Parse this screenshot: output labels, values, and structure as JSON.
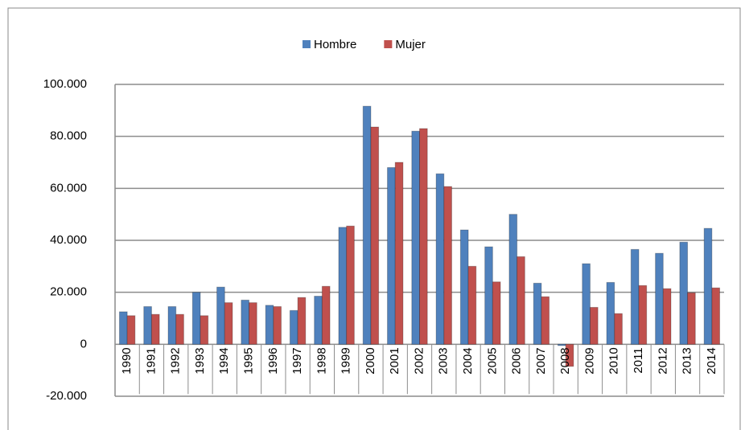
{
  "chart_data": {
    "type": "bar",
    "categories": [
      "1990",
      "1991",
      "1992",
      "1993",
      "1994",
      "1995",
      "1996",
      "1997",
      "1998",
      "1999",
      "2000",
      "2001",
      "2002",
      "2003",
      "2004",
      "2005",
      "2006",
      "2007",
      "2008",
      "2009",
      "2010",
      "2011",
      "2012",
      "2013",
      "2014"
    ],
    "series": [
      {
        "name": "Hombre",
        "color": "#4f81bd",
        "values": [
          12500,
          14500,
          14500,
          20000,
          22000,
          17000,
          15000,
          13000,
          18500,
          45000,
          91600,
          68000,
          82000,
          65600,
          44000,
          37500,
          50000,
          23500,
          -500,
          31000,
          23800,
          36500,
          35000,
          39300,
          44600
        ]
      },
      {
        "name": "Mujer",
        "color": "#c0504d",
        "values": [
          11000,
          11500,
          11500,
          11000,
          16000,
          16000,
          14500,
          18000,
          22300,
          45500,
          83600,
          70000,
          83000,
          60700,
          30000,
          24000,
          33700,
          18300,
          -8500,
          14200,
          11800,
          22600,
          21400,
          19800,
          21700
        ]
      }
    ],
    "ylim": [
      -20000,
      100000
    ],
    "yticks": [
      {
        "value": -20000,
        "label": "-20.000"
      },
      0,
      {
        "value": 20000,
        "label": "20.000"
      },
      {
        "value": 40000,
        "label": "40.000"
      },
      {
        "value": 60000,
        "label": "60.000"
      },
      {
        "value": 80000,
        "label": "80.000"
      },
      {
        "value": 100000,
        "label": "100.000"
      }
    ],
    "grid": true,
    "legend": "top"
  }
}
